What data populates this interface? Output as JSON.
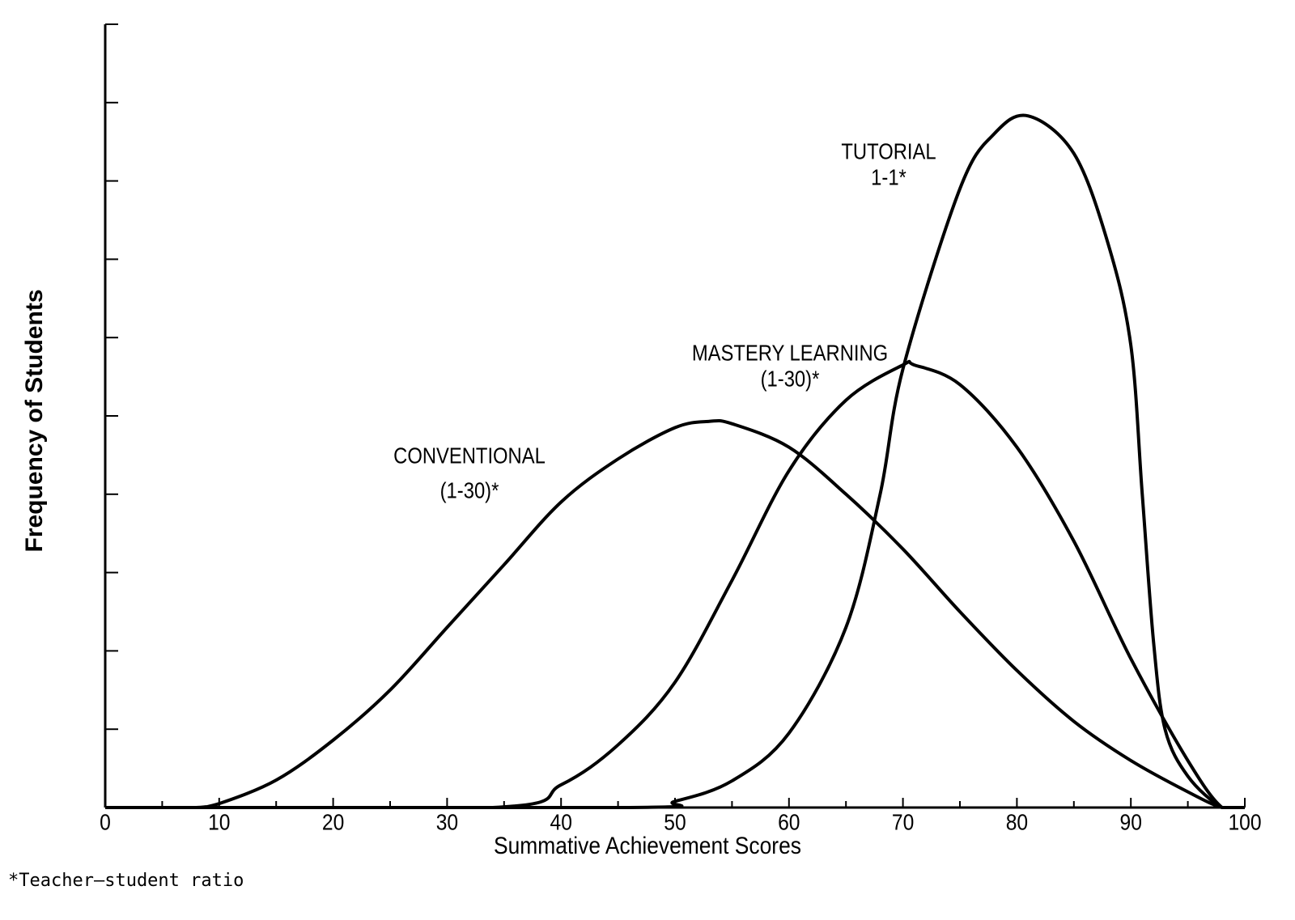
{
  "chart_data": {
    "type": "line",
    "x_label": "Summative Achievement Scores",
    "y_label": "Frequency of Students",
    "footnote": "*Teacher–student ratio",
    "xlim": [
      0,
      100
    ],
    "xticks": [
      0,
      10,
      20,
      30,
      40,
      50,
      60,
      70,
      80,
      90,
      100
    ],
    "xminorticks": [
      5,
      15,
      25,
      35,
      45,
      55,
      65,
      75,
      85,
      95
    ],
    "ylim": [
      0,
      10
    ],
    "yticks": [
      0,
      1,
      2,
      3,
      4,
      5,
      6,
      7,
      8,
      9,
      10
    ],
    "series": [
      {
        "name": "CONVENTIONAL",
        "ratio": "(1-30)*",
        "color": "#000000",
        "x": [
          0,
          5,
          8,
          10,
          15,
          20,
          25,
          30,
          35,
          40,
          45,
          50,
          53,
          55,
          60,
          65,
          70,
          75,
          80,
          85,
          90,
          95,
          98,
          100
        ],
        "values": [
          0,
          0,
          0,
          0.05,
          0.35,
          0.86,
          1.5,
          2.3,
          3.1,
          3.9,
          4.45,
          4.85,
          4.93,
          4.9,
          4.6,
          4.0,
          3.3,
          2.5,
          1.75,
          1.1,
          0.6,
          0.2,
          0,
          0
        ]
      },
      {
        "name": "MASTERY LEARNING",
        "ratio": "(1-30)*",
        "color": "#000000",
        "x": [
          0,
          34,
          40,
          45,
          50,
          55,
          60,
          65,
          70,
          71,
          75,
          80,
          85,
          90,
          95,
          98,
          100
        ],
        "values": [
          0,
          0,
          0.29,
          0.8,
          1.6,
          2.9,
          4.3,
          5.2,
          5.65,
          5.65,
          5.4,
          4.6,
          3.4,
          1.9,
          0.6,
          0,
          0
        ]
      },
      {
        "name": "TUTORIAL",
        "ratio": "1-1*",
        "color": "#000000",
        "x": [
          0,
          46,
          50,
          55,
          60,
          65,
          68,
          70,
          75,
          78,
          81,
          85,
          88,
          90,
          91,
          92,
          93,
          95,
          98,
          100
        ],
        "values": [
          0,
          0,
          0.08,
          0.34,
          0.95,
          2.3,
          4.0,
          5.6,
          7.9,
          8.6,
          8.83,
          8.35,
          7.2,
          5.9,
          4.0,
          2.1,
          1.0,
          0.4,
          0,
          0
        ]
      }
    ]
  }
}
